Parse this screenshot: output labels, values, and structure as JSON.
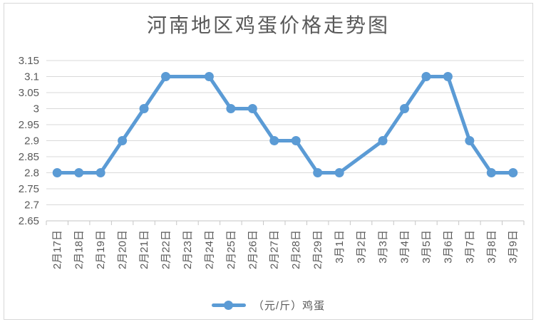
{
  "chart_data": {
    "type": "line",
    "title": "河南地区鸡蛋价格走势图",
    "categories": [
      "2月17日",
      "2月18日",
      "2月19日",
      "2月20日",
      "2月21日",
      "2月22日",
      "2月23日",
      "2月24日",
      "2月25日",
      "2月26日",
      "2月27日",
      "2月28日",
      "2月29日",
      "3月1日",
      "3月2日",
      "3月3日",
      "3月4日",
      "3月5日",
      "3月6日",
      "3月7日",
      "3月8日",
      "3月9日"
    ],
    "series": [
      {
        "name": "（元/斤）鸡蛋",
        "color": "#5B9BD5",
        "values": [
          2.8,
          2.8,
          2.8,
          2.9,
          3,
          3.1,
          null,
          3.1,
          3,
          3,
          2.9,
          2.9,
          2.8,
          2.8,
          null,
          2.9,
          3,
          3.1,
          3.1,
          2.9,
          2.8,
          2.8
        ],
        "marker": "circle",
        "note": "no markers at 2月23日 and 3月2日; the line connects straight through those positions"
      }
    ],
    "xlabel": "",
    "ylabel": "",
    "ylim": [
      2.65,
      3.15
    ],
    "y_tick_step": 0.05,
    "y_tick_labels": [
      "3.15",
      "3.1",
      "3.05",
      "3",
      "2.95",
      "2.9",
      "2.85",
      "2.8",
      "2.75",
      "2.7",
      "2.65"
    ],
    "x_tick_label_rotation": -90,
    "grid": true,
    "legend_position": "bottom"
  },
  "colors": {
    "background": "#ffffff",
    "frame_border": "#d7d7d7",
    "gridline": "#d9d9d9",
    "axis_line": "#c6c6c6",
    "tick": "#c6c6c6",
    "axis_text": "#595959",
    "title_text": "#595959",
    "series_blue": "#5B9BD5"
  }
}
